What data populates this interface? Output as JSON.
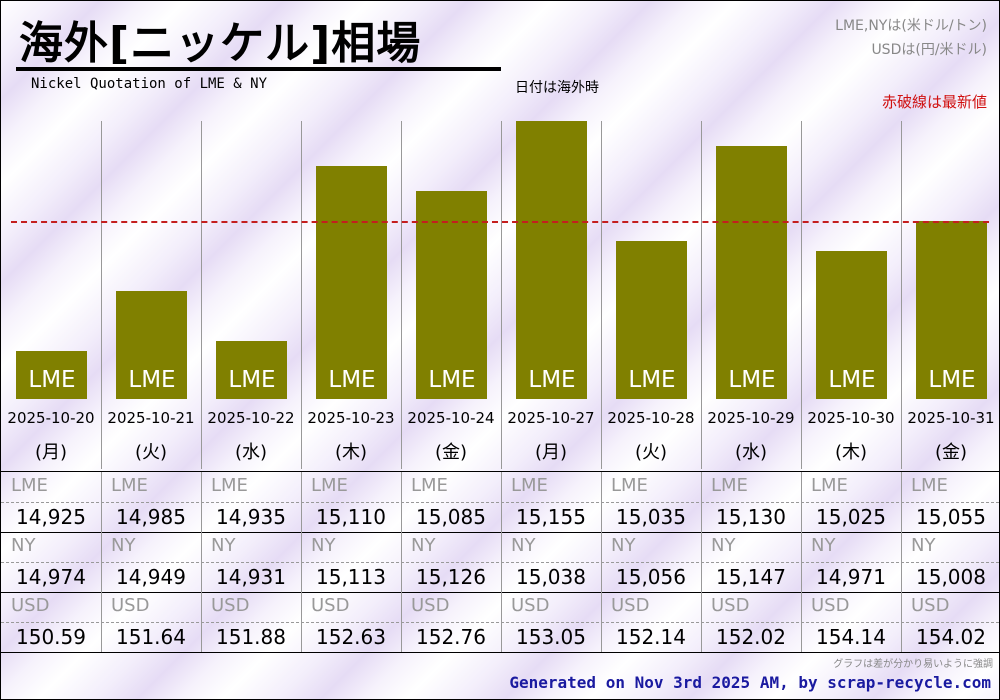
{
  "header": {
    "title": "海外[ニッケル]相場",
    "subtitle": "Nickel Quotation of LME & NY",
    "date_note": "日付は海外時",
    "unit_note_1": "LME,NYは(米ドル/トン)",
    "unit_note_2": "USDは(円/米ドル)",
    "latest_note": "赤破線は最新値"
  },
  "colors": {
    "bar": "#808000",
    "latest_line": "#c41e1e",
    "footer_text": "#1a1aa0"
  },
  "chart_data": {
    "type": "bar",
    "title": "海外[ニッケル]相場",
    "series_label": "LME",
    "categories": [
      "2025-10-20",
      "2025-10-21",
      "2025-10-22",
      "2025-10-23",
      "2025-10-24",
      "2025-10-27",
      "2025-10-28",
      "2025-10-29",
      "2025-10-30",
      "2025-10-31"
    ],
    "weekdays": [
      "(月)",
      "(火)",
      "(水)",
      "(木)",
      "(金)",
      "(月)",
      "(火)",
      "(水)",
      "(木)",
      "(金)"
    ],
    "values": [
      14925,
      14985,
      14935,
      15110,
      15085,
      15155,
      15035,
      15130,
      15025,
      15055
    ],
    "latest_value": 15055,
    "ylim": [
      14877,
      15155
    ],
    "grid": false
  },
  "table": {
    "rows": [
      {
        "label": "LME",
        "values": [
          "14,925",
          "14,985",
          "14,935",
          "15,110",
          "15,085",
          "15,155",
          "15,035",
          "15,130",
          "15,025",
          "15,055"
        ]
      },
      {
        "label": "NY",
        "values": [
          "14,974",
          "14,949",
          "14,931",
          "15,113",
          "15,126",
          "15,038",
          "15,056",
          "15,147",
          "14,971",
          "15,008"
        ]
      },
      {
        "label": "USD",
        "values": [
          "150.59",
          "151.64",
          "151.88",
          "152.63",
          "152.76",
          "153.05",
          "152.14",
          "152.02",
          "154.14",
          "154.02"
        ]
      }
    ]
  },
  "footer": {
    "note": "グラフは差が分かり易いように強調",
    "generated": "Generated on Nov 3rd 2025 AM, by scrap-recycle.com"
  }
}
